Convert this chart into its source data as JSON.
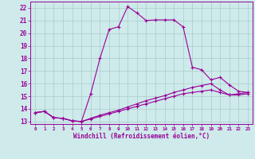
{
  "xlabel": "Windchill (Refroidissement éolien,°C)",
  "background_color": "#ceeaea",
  "grid_color": "#aacccc",
  "line_color": "#990099",
  "spine_color": "#666666",
  "xlim": [
    -0.5,
    23.5
  ],
  "ylim": [
    12.8,
    22.5
  ],
  "yticks": [
    13,
    14,
    15,
    16,
    17,
    18,
    19,
    20,
    21,
    22
  ],
  "xticks": [
    0,
    1,
    2,
    3,
    4,
    5,
    6,
    7,
    8,
    9,
    10,
    11,
    12,
    13,
    14,
    15,
    16,
    17,
    18,
    19,
    20,
    21,
    22,
    23
  ],
  "line1_x": [
    0,
    1,
    2,
    3,
    4,
    5,
    6,
    7,
    8,
    9,
    10,
    11,
    12,
    13,
    14,
    15,
    16,
    17,
    18,
    19,
    20,
    21,
    22,
    23
  ],
  "line1_y": [
    13.7,
    13.8,
    13.3,
    13.25,
    13.05,
    13.0,
    15.2,
    18.0,
    20.3,
    20.5,
    22.1,
    21.6,
    21.0,
    21.05,
    21.05,
    21.05,
    20.5,
    17.3,
    17.1,
    16.3,
    16.5,
    15.9,
    15.4,
    15.3
  ],
  "line2_x": [
    0,
    1,
    2,
    3,
    4,
    5,
    6,
    7,
    8,
    9,
    10,
    11,
    12,
    13,
    14,
    15,
    16,
    17,
    18,
    19,
    20,
    21,
    22,
    23
  ],
  "line2_y": [
    13.7,
    13.8,
    13.3,
    13.25,
    13.05,
    13.0,
    13.25,
    13.5,
    13.7,
    13.9,
    14.15,
    14.4,
    14.65,
    14.85,
    15.05,
    15.3,
    15.5,
    15.7,
    15.85,
    16.0,
    15.5,
    15.1,
    15.2,
    15.3
  ],
  "line3_x": [
    0,
    1,
    2,
    3,
    4,
    5,
    6,
    7,
    8,
    9,
    10,
    11,
    12,
    13,
    14,
    15,
    16,
    17,
    18,
    19,
    20,
    21,
    22,
    23
  ],
  "line3_y": [
    13.7,
    13.8,
    13.3,
    13.25,
    13.05,
    13.0,
    13.2,
    13.4,
    13.6,
    13.8,
    14.0,
    14.2,
    14.4,
    14.6,
    14.8,
    15.0,
    15.2,
    15.3,
    15.4,
    15.5,
    15.3,
    15.1,
    15.1,
    15.2
  ]
}
